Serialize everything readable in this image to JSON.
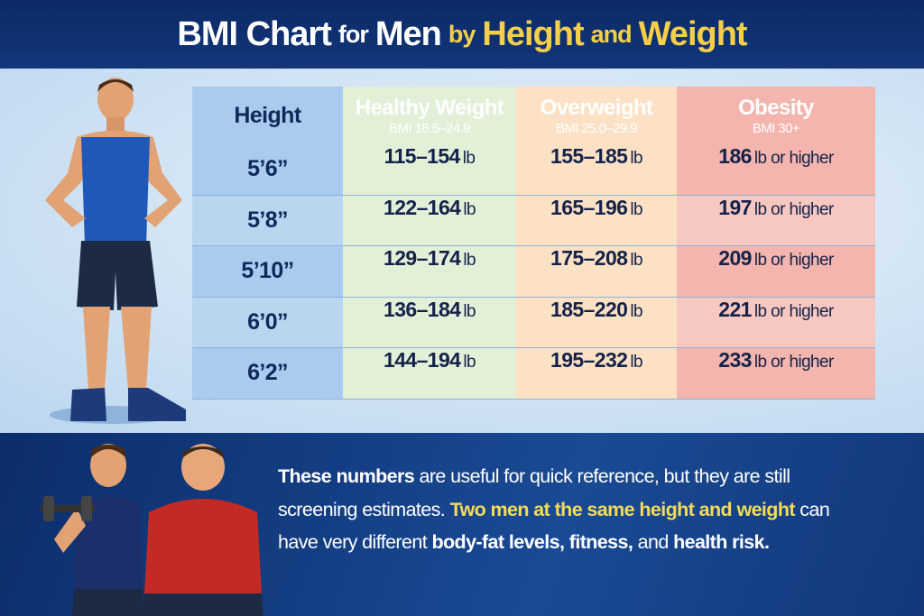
{
  "title": {
    "part1": "BMI Chart",
    "part2": "for",
    "part3": "Men",
    "part4": "by",
    "part5": "Height",
    "part6": "and",
    "part7": "Weight"
  },
  "colors": {
    "height": "#0f3472",
    "healthy": "#237a34",
    "overweight": "#d9620f",
    "obesity": "#b8170f",
    "highlight": "#f5cf4a"
  },
  "chart_data": {
    "type": "table",
    "columns": [
      {
        "label": "Height",
        "sub": ""
      },
      {
        "label": "Healthy Weight",
        "sub": "BMI 18.5–24.9"
      },
      {
        "label": "Overweight",
        "sub": "BMI 25.0–29.9"
      },
      {
        "label": "Obesity",
        "sub": "BMI 30+"
      }
    ],
    "rows": [
      {
        "height": "5’6”",
        "healthy": "115–154",
        "overweight": "155–185",
        "obesity": "186"
      },
      {
        "height": "5’8”",
        "healthy": "122–164",
        "overweight": "165–196",
        "obesity": "197"
      },
      {
        "height": "5’10”",
        "healthy": "129–174",
        "overweight": "175–208",
        "obesity": "209"
      },
      {
        "height": "6’0”",
        "healthy": "136–184",
        "overweight": "185–220",
        "obesity": "221"
      },
      {
        "height": "6’2”",
        "healthy": "144–194",
        "overweight": "195–232",
        "obesity": "233"
      }
    ],
    "unit": "lb",
    "obesity_suffix": "lb or higher"
  },
  "note": {
    "s1": "These numbers",
    "s2": " are useful for quick reference, but they are still screening estimates. ",
    "s3": "Two men at the same height and weight",
    "s4": " can have very different ",
    "s5": "body-fat levels, fitness,",
    "s6": " and ",
    "s7": "health risk."
  }
}
